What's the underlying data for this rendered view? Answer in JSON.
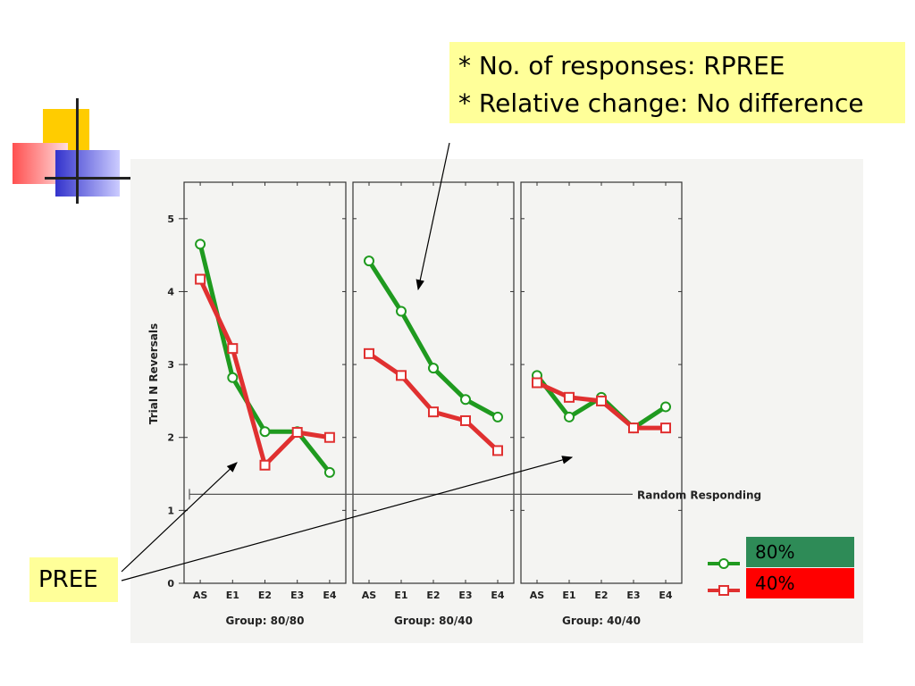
{
  "annotations": {
    "callout_lines": [
      "* No. of responses: RPREE",
      "* Relative change: No difference"
    ],
    "pree_label": "PREE"
  },
  "colors": {
    "series_80": "#1f9a1f",
    "series_40": "#e03030",
    "legend_80_bg": "#2e8b57",
    "legend_40_bg": "#ff0000",
    "callout_bg": "#ffff99"
  },
  "legend": {
    "items": [
      {
        "label": "80%",
        "marker": "circle"
      },
      {
        "label": "40%",
        "marker": "square"
      }
    ]
  },
  "chart_data": {
    "type": "line",
    "ylabel": "Trial N Reversals",
    "ylim": [
      0,
      5.5
    ],
    "yticks": [
      0,
      1,
      2,
      3,
      4,
      5
    ],
    "categories": [
      "AS",
      "E1",
      "E2",
      "E3",
      "E4"
    ],
    "reference_line": {
      "label": "Random Responding",
      "value": 1.22
    },
    "panels": [
      {
        "group_label": "Group: 80/80",
        "series": [
          {
            "values": [
              4.65,
              2.82,
              2.08,
              2.08,
              1.52
            ]
          },
          {
            "values": [
              4.17,
              3.22,
              1.62,
              2.07,
              2.0
            ]
          }
        ]
      },
      {
        "group_label": "Group: 80/40",
        "series": [
          {
            "values": [
              4.42,
              3.73,
              2.95,
              2.52,
              2.28
            ]
          },
          {
            "values": [
              3.15,
              2.85,
              2.35,
              2.23,
              1.82
            ]
          }
        ]
      },
      {
        "group_label": "Group: 40/40",
        "series": [
          {
            "values": [
              2.85,
              2.28,
              2.55,
              2.13,
              2.42
            ]
          },
          {
            "values": [
              2.75,
              2.55,
              2.5,
              2.13,
              2.13
            ]
          }
        ]
      }
    ]
  }
}
